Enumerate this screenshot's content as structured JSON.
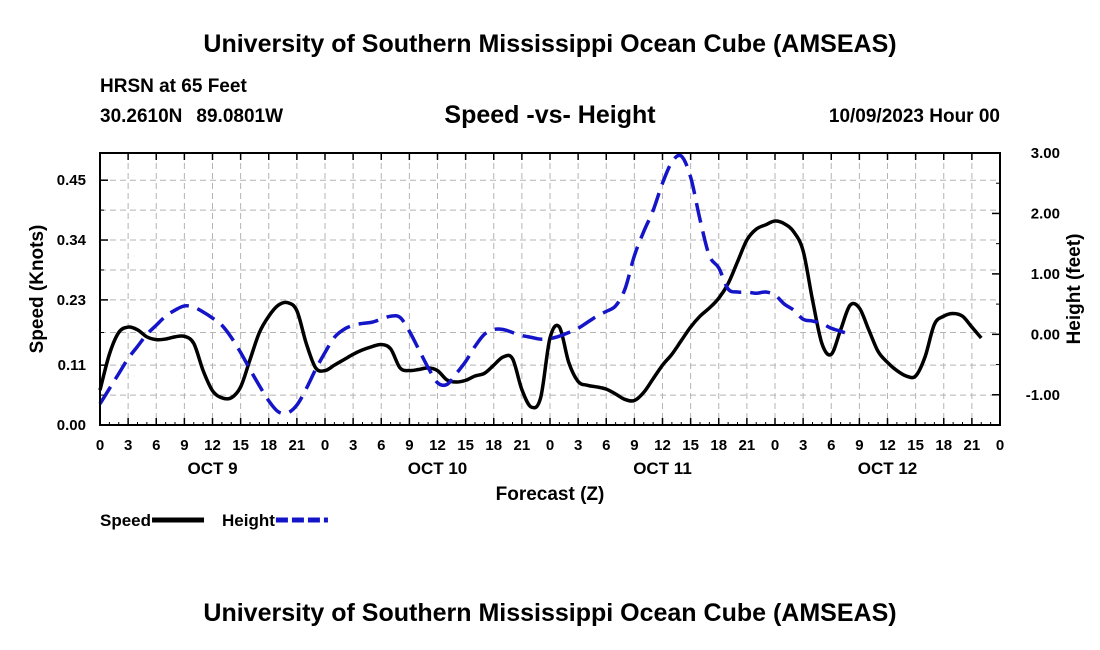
{
  "header": {
    "title": "University of Southern Mississippi Ocean Cube (AMSEAS)",
    "station": "HRSN at 65 Feet",
    "latitude": "30.2610N",
    "longitude": "89.0801W",
    "subtitle": "Speed -vs- Height",
    "datetime": "10/09/2023 Hour 00"
  },
  "footer": {
    "title": "University of Southern Mississippi Ocean Cube (AMSEAS)"
  },
  "chart_data": {
    "type": "line",
    "title": "Speed -vs- Height",
    "xlabel": "Forecast (Z)",
    "ylabel": "Speed (Knots)",
    "y2label": "Height (feet)",
    "x_range_hours": [
      0,
      96
    ],
    "x_tick_step_hours": 3,
    "x_tick_labels": [
      "0",
      "3",
      "6",
      "9",
      "12",
      "15",
      "18",
      "21",
      "0",
      "3",
      "6",
      "9",
      "12",
      "15",
      "18",
      "21",
      "0",
      "3",
      "6",
      "9",
      "12",
      "15",
      "18",
      "21",
      "0",
      "3",
      "6",
      "9",
      "12",
      "15",
      "18",
      "21",
      "0"
    ],
    "day_labels": [
      {
        "label": "OCT 9",
        "hour": 12
      },
      {
        "label": "OCT 10",
        "hour": 36
      },
      {
        "label": "OCT 11",
        "hour": 60
      },
      {
        "label": "OCT 12",
        "hour": 84
      }
    ],
    "ylim": [
      0,
      0.5
    ],
    "y_ticks": [
      0,
      0.11,
      0.23,
      0.34,
      0.45
    ],
    "y_tick_labels": [
      "0.00",
      "0.11",
      "0.23",
      "0.34",
      "0.45"
    ],
    "y2lim": [
      -1.5,
      3.0
    ],
    "y2_ticks": [
      -1,
      0,
      1,
      2,
      3
    ],
    "y2_tick_labels": [
      "-1.00",
      "0.00",
      "1.00",
      "2.00",
      "3.00"
    ],
    "grid": true,
    "series": [
      {
        "name": "Speed",
        "axis": "left",
        "color": "#000000",
        "style": "solid",
        "points": [
          [
            0,
            0.064
          ],
          [
            1,
            0.13
          ],
          [
            2,
            0.17
          ],
          [
            3,
            0.18
          ],
          [
            4,
            0.175
          ],
          [
            5,
            0.162
          ],
          [
            6,
            0.157
          ],
          [
            7,
            0.158
          ],
          [
            8,
            0.162
          ],
          [
            9,
            0.163
          ],
          [
            10,
            0.15
          ],
          [
            11,
            0.1
          ],
          [
            12,
            0.063
          ],
          [
            13,
            0.05
          ],
          [
            14,
            0.05
          ],
          [
            15,
            0.07
          ],
          [
            16,
            0.12
          ],
          [
            17,
            0.17
          ],
          [
            18,
            0.2
          ],
          [
            19,
            0.22
          ],
          [
            20,
            0.225
          ],
          [
            21,
            0.21
          ],
          [
            22,
            0.15
          ],
          [
            23,
            0.105
          ],
          [
            24,
            0.1
          ],
          [
            25,
            0.11
          ],
          [
            26,
            0.12
          ],
          [
            27,
            0.13
          ],
          [
            28,
            0.138
          ],
          [
            29,
            0.144
          ],
          [
            30,
            0.148
          ],
          [
            31,
            0.14
          ],
          [
            32,
            0.105
          ],
          [
            33,
            0.1
          ],
          [
            34,
            0.102
          ],
          [
            35,
            0.105
          ],
          [
            36,
            0.1
          ],
          [
            37,
            0.083
          ],
          [
            38,
            0.079
          ],
          [
            39,
            0.082
          ],
          [
            40,
            0.09
          ],
          [
            41,
            0.095
          ],
          [
            42,
            0.11
          ],
          [
            43,
            0.125
          ],
          [
            44,
            0.122
          ],
          [
            45,
            0.065
          ],
          [
            46,
            0.033
          ],
          [
            47,
            0.05
          ],
          [
            48,
            0.16
          ],
          [
            49,
            0.18
          ],
          [
            50,
            0.115
          ],
          [
            51,
            0.08
          ],
          [
            52,
            0.073
          ],
          [
            53,
            0.07
          ],
          [
            54,
            0.066
          ],
          [
            55,
            0.057
          ],
          [
            56,
            0.047
          ],
          [
            57,
            0.045
          ],
          [
            58,
            0.06
          ],
          [
            59,
            0.085
          ],
          [
            60,
            0.11
          ],
          [
            61,
            0.13
          ],
          [
            62,
            0.155
          ],
          [
            63,
            0.18
          ],
          [
            64,
            0.2
          ],
          [
            65,
            0.215
          ],
          [
            66,
            0.233
          ],
          [
            67,
            0.26
          ],
          [
            68,
            0.3
          ],
          [
            69,
            0.34
          ],
          [
            70,
            0.36
          ],
          [
            71,
            0.368
          ],
          [
            72,
            0.375
          ],
          [
            73,
            0.37
          ],
          [
            74,
            0.355
          ],
          [
            75,
            0.32
          ],
          [
            76,
            0.23
          ],
          [
            77,
            0.15
          ],
          [
            78,
            0.13
          ],
          [
            79,
            0.175
          ],
          [
            80,
            0.22
          ],
          [
            81,
            0.215
          ],
          [
            82,
            0.175
          ],
          [
            83,
            0.135
          ],
          [
            84,
            0.115
          ],
          [
            85,
            0.1
          ],
          [
            86,
            0.09
          ],
          [
            87,
            0.09
          ],
          [
            88,
            0.125
          ],
          [
            89,
            0.185
          ],
          [
            90,
            0.2
          ],
          [
            91,
            0.205
          ],
          [
            92,
            0.2
          ],
          [
            93,
            0.18
          ],
          [
            94,
            0.16
          ]
        ]
      },
      {
        "name": "Height",
        "axis": "right",
        "color": "#1414c8",
        "style": "dashed",
        "points": [
          [
            0,
            -1.15
          ],
          [
            1,
            -0.9
          ],
          [
            2,
            -0.65
          ],
          [
            3,
            -0.4
          ],
          [
            4,
            -0.2
          ],
          [
            5,
            0.0
          ],
          [
            6,
            0.15
          ],
          [
            7,
            0.3
          ],
          [
            8,
            0.4
          ],
          [
            9,
            0.47
          ],
          [
            10,
            0.45
          ],
          [
            11,
            0.37
          ],
          [
            12,
            0.27
          ],
          [
            13,
            0.15
          ],
          [
            14,
            -0.05
          ],
          [
            15,
            -0.3
          ],
          [
            16,
            -0.58
          ],
          [
            17,
            -0.85
          ],
          [
            18,
            -1.1
          ],
          [
            19,
            -1.28
          ],
          [
            20,
            -1.3
          ],
          [
            21,
            -1.17
          ],
          [
            22,
            -0.9
          ],
          [
            23,
            -0.58
          ],
          [
            24,
            -0.3
          ],
          [
            25,
            -0.05
          ],
          [
            26,
            0.08
          ],
          [
            27,
            0.15
          ],
          [
            28,
            0.18
          ],
          [
            29,
            0.2
          ],
          [
            30,
            0.25
          ],
          [
            31,
            0.3
          ],
          [
            32,
            0.28
          ],
          [
            33,
            0.05
          ],
          [
            34,
            -0.25
          ],
          [
            35,
            -0.55
          ],
          [
            36,
            -0.8
          ],
          [
            37,
            -0.83
          ],
          [
            38,
            -0.65
          ],
          [
            39,
            -0.45
          ],
          [
            40,
            -0.2
          ],
          [
            41,
            0.0
          ],
          [
            42,
            0.08
          ],
          [
            43,
            0.08
          ],
          [
            44,
            0.03
          ],
          [
            45,
            -0.02
          ],
          [
            46,
            -0.05
          ],
          [
            47,
            -0.08
          ],
          [
            48,
            -0.07
          ],
          [
            49,
            -0.03
          ],
          [
            50,
            0.03
          ],
          [
            51,
            0.1
          ],
          [
            52,
            0.2
          ],
          [
            53,
            0.3
          ],
          [
            54,
            0.38
          ],
          [
            55,
            0.47
          ],
          [
            56,
            0.75
          ],
          [
            57,
            1.3
          ],
          [
            58,
            1.7
          ],
          [
            59,
            2.05
          ],
          [
            60,
            2.5
          ],
          [
            61,
            2.85
          ],
          [
            62,
            2.95
          ],
          [
            63,
            2.6
          ],
          [
            64,
            1.9
          ],
          [
            65,
            1.3
          ],
          [
            66,
            1.1
          ],
          [
            67,
            0.75
          ],
          [
            68,
            0.7
          ],
          [
            69,
            0.7
          ],
          [
            70,
            0.68
          ],
          [
            71,
            0.7
          ],
          [
            72,
            0.65
          ],
          [
            73,
            0.5
          ],
          [
            74,
            0.4
          ],
          [
            75,
            0.25
          ],
          [
            76,
            0.22
          ],
          [
            77,
            0.18
          ],
          [
            78,
            0.1
          ],
          [
            79,
            0.05
          ],
          [
            80,
            0.0
          ]
        ]
      }
    ],
    "legend": [
      {
        "label": "Speed",
        "color": "#000000",
        "style": "solid"
      },
      {
        "label": "Height",
        "color": "#1414c8",
        "style": "dashed"
      }
    ],
    "legend_position": "bottom-left"
  }
}
